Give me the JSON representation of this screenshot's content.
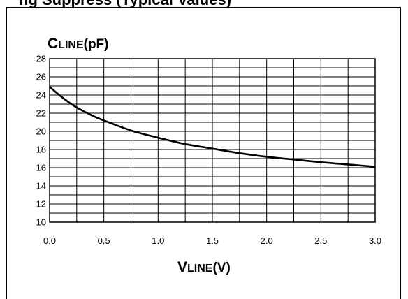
{
  "page_title": "ng Suppress (Typical Values)",
  "chart_data": {
    "type": "line",
    "title": "",
    "ylabel": {
      "main": "C",
      "sub": "LINE",
      "unit": "(pF)"
    },
    "xlabel": {
      "main": "V",
      "sub": "LINE",
      "unit": "(V)"
    },
    "xlim": [
      0,
      3
    ],
    "ylim": [
      10,
      28
    ],
    "x_minor_step": 0.25,
    "y_minor_step": 1,
    "x_ticks": [
      "0.0",
      "0.5",
      "1.0",
      "1.5",
      "2.0",
      "2.5",
      "3.0"
    ],
    "y_ticks": [
      "28",
      "26",
      "24",
      "22",
      "20",
      "18",
      "16",
      "14",
      "12",
      "10"
    ],
    "grid": true,
    "series": [
      {
        "color": "#000000",
        "x": [
          0.0,
          0.1,
          0.2,
          0.3,
          0.4,
          0.5,
          0.75,
          1.0,
          1.25,
          1.5,
          1.75,
          2.0,
          2.25,
          2.5,
          2.75,
          3.0
        ],
        "y": [
          24.9,
          23.9,
          23.0,
          22.3,
          21.7,
          21.2,
          20.1,
          19.3,
          18.6,
          18.1,
          17.6,
          17.2,
          16.9,
          16.6,
          16.35,
          16.1
        ]
      }
    ]
  }
}
